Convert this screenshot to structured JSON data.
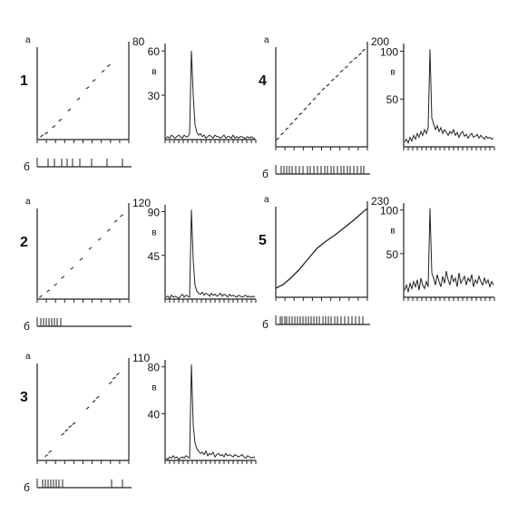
{
  "chart_data": [
    {
      "panel_number": "1",
      "type": "scatter",
      "plot_a": {
        "label": "а",
        "y_max_label": "80",
        "points": [
          [
            0.05,
            0.04
          ],
          [
            0.1,
            0.07
          ],
          [
            0.18,
            0.14
          ],
          [
            0.25,
            0.21
          ],
          [
            0.35,
            0.32
          ],
          [
            0.45,
            0.44
          ],
          [
            0.55,
            0.56
          ],
          [
            0.62,
            0.64
          ],
          [
            0.72,
            0.74
          ],
          [
            0.78,
            0.8
          ]
        ]
      },
      "plot_b": {
        "label": "б",
        "event_times": [
          0.1,
          0.17,
          0.25,
          0.31,
          0.37,
          0.45,
          0.58,
          0.75,
          0.92
        ]
      },
      "plot_v": {
        "label": "в",
        "type": "line",
        "y_tick_labels": [
          "60",
          "30"
        ],
        "y_ticks": [
          60,
          30
        ],
        "ylim": [
          0,
          65
        ],
        "values": [
          1,
          2,
          1,
          3,
          2,
          1,
          2,
          3,
          2,
          1,
          3,
          2,
          2,
          4,
          60,
          30,
          10,
          5,
          3,
          4,
          2,
          3,
          1,
          2,
          3,
          2,
          1,
          3,
          2,
          2,
          1,
          2,
          3,
          1,
          2,
          2,
          1,
          3,
          1,
          2,
          1,
          2,
          2,
          1,
          1,
          2,
          1,
          2,
          1,
          1
        ]
      }
    },
    {
      "panel_number": "2",
      "type": "scatter",
      "plot_a": {
        "label": "а",
        "y_max_label": "120",
        "points": [
          [
            0.04,
            0.03
          ],
          [
            0.12,
            0.09
          ],
          [
            0.2,
            0.16
          ],
          [
            0.28,
            0.24
          ],
          [
            0.38,
            0.34
          ],
          [
            0.48,
            0.44
          ],
          [
            0.58,
            0.56
          ],
          [
            0.68,
            0.66
          ],
          [
            0.78,
            0.76
          ],
          [
            0.86,
            0.86
          ],
          [
            0.92,
            0.92
          ]
        ]
      },
      "plot_b": {
        "label": "б",
        "event_times": [
          0.02,
          0.05,
          0.08,
          0.11,
          0.14,
          0.17,
          0.2,
          0.24
        ]
      },
      "plot_v": {
        "label": "в",
        "type": "line",
        "y_tick_labels": [
          "90",
          "45"
        ],
        "y_ticks": [
          90,
          45
        ],
        "ylim": [
          0,
          97
        ],
        "values": [
          2,
          3,
          1,
          4,
          2,
          3,
          2,
          1,
          3,
          5,
          2,
          4,
          3,
          2,
          92,
          40,
          14,
          8,
          6,
          5,
          7,
          4,
          6,
          5,
          3,
          6,
          4,
          5,
          3,
          4,
          6,
          3,
          5,
          4,
          2,
          5,
          3,
          4,
          3,
          2,
          4,
          3,
          2,
          3,
          4,
          2,
          3,
          2,
          3,
          2
        ]
      }
    },
    {
      "panel_number": "3",
      "type": "scatter",
      "plot_a": {
        "label": "а",
        "y_max_label": "110",
        "points": [
          [
            0.1,
            0.05
          ],
          [
            0.14,
            0.09
          ],
          [
            0.28,
            0.27
          ],
          [
            0.32,
            0.31
          ],
          [
            0.36,
            0.35
          ],
          [
            0.4,
            0.38
          ],
          [
            0.55,
            0.54
          ],
          [
            0.62,
            0.61
          ],
          [
            0.66,
            0.65
          ],
          [
            0.8,
            0.8
          ],
          [
            0.84,
            0.85
          ],
          [
            0.88,
            0.89
          ]
        ]
      },
      "plot_b": {
        "label": "б",
        "event_times": [
          0.04,
          0.07,
          0.1,
          0.13,
          0.16,
          0.19,
          0.22,
          0.26,
          0.8,
          0.92
        ]
      },
      "plot_v": {
        "label": "в",
        "type": "line",
        "y_tick_labels": [
          "80",
          "40"
        ],
        "y_ticks": [
          80,
          40
        ],
        "ylim": [
          0,
          86
        ],
        "values": [
          2,
          1,
          3,
          2,
          4,
          2,
          3,
          1,
          2,
          3,
          2,
          4,
          3,
          2,
          82,
          30,
          15,
          10,
          8,
          6,
          7,
          5,
          8,
          4,
          6,
          5,
          7,
          3,
          5,
          6,
          4,
          5,
          3,
          6,
          4,
          5,
          4,
          3,
          5,
          4,
          3,
          4,
          5,
          3,
          2,
          4,
          3,
          2,
          3,
          2
        ]
      }
    },
    {
      "panel_number": "4",
      "type": "scatter",
      "plot_a": {
        "label": "а",
        "y_max_label": "200",
        "points": [
          [
            0.02,
            0.08
          ],
          [
            0.07,
            0.13
          ],
          [
            0.12,
            0.18
          ],
          [
            0.17,
            0.23
          ],
          [
            0.22,
            0.28
          ],
          [
            0.27,
            0.33
          ],
          [
            0.32,
            0.38
          ],
          [
            0.37,
            0.43
          ],
          [
            0.42,
            0.48
          ],
          [
            0.47,
            0.53
          ],
          [
            0.52,
            0.58
          ],
          [
            0.57,
            0.62
          ],
          [
            0.62,
            0.67
          ],
          [
            0.67,
            0.71
          ],
          [
            0.72,
            0.76
          ],
          [
            0.77,
            0.8
          ],
          [
            0.82,
            0.85
          ],
          [
            0.87,
            0.89
          ],
          [
            0.92,
            0.93
          ],
          [
            0.96,
            0.97
          ]
        ]
      },
      "plot_b": {
        "label": "б",
        "event_times": [
          0.04,
          0.07,
          0.1,
          0.13,
          0.16,
          0.2,
          0.24,
          0.28,
          0.33,
          0.36,
          0.4,
          0.44,
          0.48,
          0.52,
          0.55,
          0.59,
          0.62,
          0.66,
          0.7,
          0.73,
          0.77,
          0.8,
          0.84,
          0.88,
          0.92,
          0.95
        ]
      },
      "plot_v": {
        "label": "в",
        "type": "line",
        "y_tick_labels": [
          "100",
          "50"
        ],
        "y_ticks": [
          100,
          50
        ],
        "ylim": [
          0,
          108
        ],
        "values": [
          5,
          8,
          4,
          10,
          6,
          12,
          8,
          14,
          10,
          16,
          12,
          18,
          14,
          20,
          102,
          30,
          24,
          18,
          22,
          16,
          20,
          14,
          18,
          15,
          12,
          16,
          14,
          18,
          12,
          15,
          10,
          14,
          16,
          11,
          13,
          9,
          12,
          14,
          10,
          11,
          13,
          9,
          12,
          10,
          8,
          11,
          9,
          10,
          8,
          9
        ]
      }
    },
    {
      "panel_number": "5",
      "type": "line",
      "plot_a": {
        "label": "а",
        "y_max_label": "230",
        "points": [
          [
            0.0,
            0.1
          ],
          [
            0.08,
            0.14
          ],
          [
            0.15,
            0.2
          ],
          [
            0.25,
            0.3
          ],
          [
            0.35,
            0.42
          ],
          [
            0.45,
            0.54
          ],
          [
            0.55,
            0.62
          ],
          [
            0.65,
            0.69
          ],
          [
            0.75,
            0.77
          ],
          [
            0.85,
            0.85
          ],
          [
            0.95,
            0.94
          ],
          [
            1.0,
            0.98
          ]
        ]
      },
      "plot_b": {
        "label": "б",
        "event_times": [
          0.03,
          0.05,
          0.08,
          0.1,
          0.13,
          0.16,
          0.19,
          0.22,
          0.25,
          0.28,
          0.31,
          0.34,
          0.37,
          0.4,
          0.43,
          0.46,
          0.5,
          0.53,
          0.56,
          0.59,
          0.63,
          0.66,
          0.7,
          0.74,
          0.78,
          0.82,
          0.86,
          0.9,
          0.94
        ]
      },
      "plot_v": {
        "label": "в",
        "type": "line",
        "y_tick_labels": [
          "100",
          "50"
        ],
        "y_ticks": [
          100,
          50
        ],
        "ylim": [
          0,
          108
        ],
        "values": [
          8,
          14,
          6,
          16,
          10,
          18,
          12,
          20,
          8,
          22,
          14,
          10,
          18,
          12,
          102,
          28,
          22,
          14,
          26,
          18,
          12,
          24,
          16,
          30,
          20,
          14,
          26,
          18,
          22,
          12,
          28,
          16,
          20,
          24,
          14,
          22,
          18,
          26,
          12,
          20,
          16,
          24,
          18,
          14,
          22,
          16,
          20,
          12,
          18,
          14
        ]
      }
    }
  ]
}
